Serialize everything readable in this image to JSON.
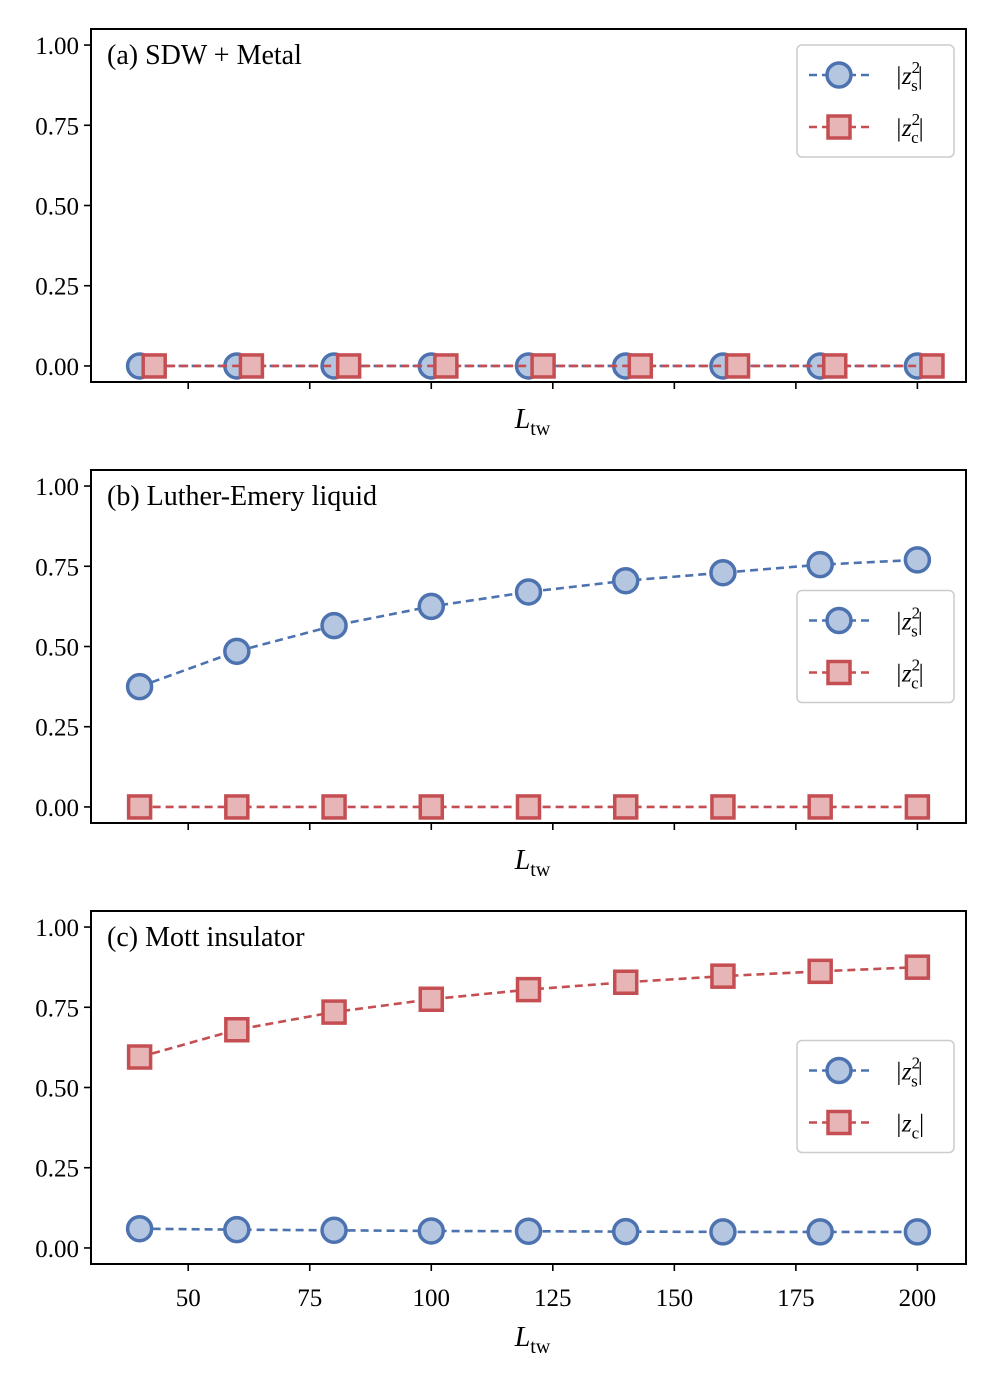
{
  "colors": {
    "spin": "#4c72b0",
    "spin_fill": "#b5c6e1",
    "charge": "#c44e52",
    "charge_fill": "#e8b5b7"
  },
  "chart_data": [
    {
      "type": "line",
      "title": "(a) SDW + Metal",
      "xlabel_main": "L",
      "xlabel_sub": "tw",
      "show_x_tick_labels": false,
      "ylim": [
        -0.05,
        1.05
      ],
      "xlim": [
        30,
        210
      ],
      "yticks": [
        "0.00",
        "0.25",
        "0.50",
        "0.75",
        "1.00"
      ],
      "xticks": [
        50,
        75,
        100,
        125,
        150,
        175,
        200
      ],
      "legend": {
        "position": "top-right",
        "entries": [
          {
            "series": "s",
            "label": "|z",
            "sub": "s",
            "sup": "2",
            "close": "|"
          },
          {
            "series": "c",
            "label": "|z",
            "sub": "c",
            "sup": "2",
            "close": "|"
          }
        ]
      },
      "series": [
        {
          "name": "|z_s^2|",
          "key": "s",
          "marker": "circle",
          "x": [
            40,
            60,
            80,
            100,
            120,
            140,
            160,
            180,
            200
          ],
          "values": [
            0,
            0,
            0,
            0,
            0,
            0,
            0,
            0,
            0
          ]
        },
        {
          "name": "|z_c^2|",
          "key": "c",
          "marker": "square",
          "x": [
            43,
            63,
            83,
            103,
            123,
            143,
            163,
            183,
            203
          ],
          "values": [
            0,
            0,
            0,
            0,
            0,
            0,
            0,
            0,
            0
          ]
        }
      ]
    },
    {
      "type": "line",
      "title": "(b) Luther-Emery liquid",
      "xlabel_main": "L",
      "xlabel_sub": "tw",
      "show_x_tick_labels": false,
      "ylim": [
        -0.05,
        1.05
      ],
      "xlim": [
        30,
        210
      ],
      "yticks": [
        "0.00",
        "0.25",
        "0.50",
        "0.75",
        "1.00"
      ],
      "xticks": [
        50,
        75,
        100,
        125,
        150,
        175,
        200
      ],
      "legend": {
        "position": "center-right",
        "entries": [
          {
            "series": "s",
            "label": "|z",
            "sub": "s",
            "sup": "2",
            "close": "|"
          },
          {
            "series": "c",
            "label": "|z",
            "sub": "c",
            "sup": "2",
            "close": "|"
          }
        ]
      },
      "series": [
        {
          "name": "|z_s^2|",
          "key": "s",
          "marker": "circle",
          "x": [
            40,
            60,
            80,
            100,
            120,
            140,
            160,
            180,
            200
          ],
          "values": [
            0.375,
            0.485,
            0.565,
            0.625,
            0.67,
            0.705,
            0.73,
            0.755,
            0.77
          ]
        },
        {
          "name": "|z_c^2|",
          "key": "c",
          "marker": "square",
          "x": [
            40,
            60,
            80,
            100,
            120,
            140,
            160,
            180,
            200
          ],
          "values": [
            0,
            0,
            0,
            0,
            0,
            0,
            0,
            0,
            0
          ]
        }
      ]
    },
    {
      "type": "line",
      "title": "(c) Mott insulator",
      "xlabel_main": "L",
      "xlabel_sub": "tw",
      "show_x_tick_labels": true,
      "ylim": [
        -0.05,
        1.05
      ],
      "xlim": [
        30,
        210
      ],
      "yticks": [
        "0.00",
        "0.25",
        "0.50",
        "0.75",
        "1.00"
      ],
      "xticks": [
        50,
        75,
        100,
        125,
        150,
        175,
        200
      ],
      "legend": {
        "position": "center-right",
        "entries": [
          {
            "series": "s",
            "label": "|z",
            "sub": "s",
            "sup": "2",
            "close": "|"
          },
          {
            "series": "c",
            "label": "|z",
            "sub": "c",
            "sup": "",
            "close": "|"
          }
        ]
      },
      "series": [
        {
          "name": "|z_s^2|",
          "key": "s",
          "marker": "circle",
          "x": [
            40,
            60,
            80,
            100,
            120,
            140,
            160,
            180,
            200
          ],
          "values": [
            0.06,
            0.057,
            0.055,
            0.053,
            0.052,
            0.051,
            0.05,
            0.05,
            0.05
          ]
        },
        {
          "name": "|z_c|",
          "key": "c",
          "marker": "square",
          "x": [
            40,
            60,
            80,
            100,
            120,
            140,
            160,
            180,
            200
          ],
          "values": [
            0.595,
            0.68,
            0.735,
            0.775,
            0.805,
            0.828,
            0.847,
            0.862,
            0.875
          ]
        }
      ]
    }
  ]
}
